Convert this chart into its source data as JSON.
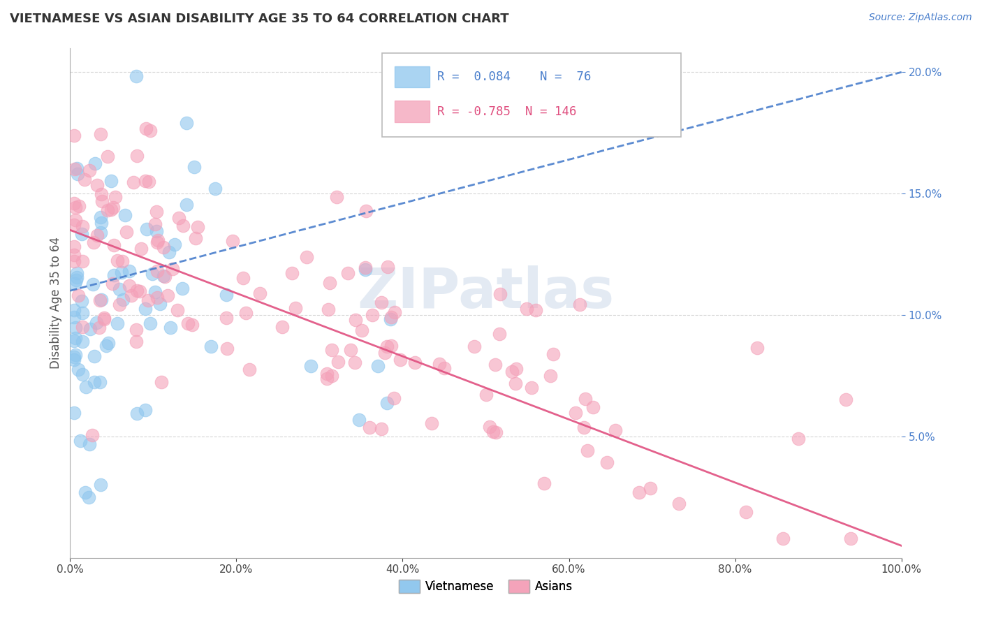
{
  "title": "VIETNAMESE VS ASIAN DISABILITY AGE 35 TO 64 CORRELATION CHART",
  "source_text": "Source: ZipAtlas.com",
  "ylabel": "Disability Age 35 to 64",
  "xlim": [
    0.0,
    1.0
  ],
  "ylim": [
    0.0,
    0.21
  ],
  "viet_R": 0.084,
  "viet_N": 76,
  "asian_R": -0.785,
  "asian_N": 146,
  "viet_color": "#8EC6EE",
  "asian_color": "#F4A0B8",
  "viet_line_color": "#4A7FCC",
  "asian_line_color": "#E05080",
  "legend_viet_label": "Vietnamese",
  "legend_asian_label": "Asians",
  "watermark": "ZIPatlas",
  "title_color": "#333333",
  "source_color": "#4A7FCC",
  "tick_color": "#4A7FCC"
}
